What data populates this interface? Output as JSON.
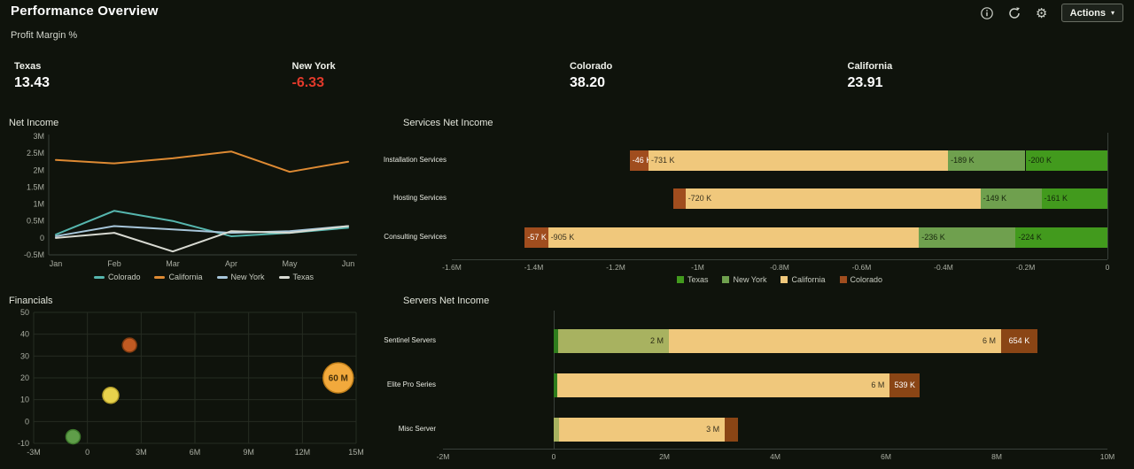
{
  "header": {
    "title": "Performance Overview",
    "actions_label": "Actions",
    "icons": [
      "info-icon",
      "refresh-icon",
      "gear-icon"
    ]
  },
  "kpi": {
    "section_label": "Profit Margin %",
    "tiles": [
      {
        "label": "Texas",
        "value": "13.43",
        "negative": false
      },
      {
        "label": "New York",
        "value": "-6.33",
        "negative": true
      },
      {
        "label": "Colorado",
        "value": "38.20",
        "negative": false
      },
      {
        "label": "California",
        "value": "23.91",
        "negative": false
      }
    ]
  },
  "colors": {
    "negative_value": "#e23a2b",
    "positive_value": "#ffffff",
    "background": "#0f130c",
    "grid": "#262c22",
    "axis": "#39403a"
  },
  "chart_data": [
    {
      "id": "net_income",
      "type": "line",
      "title": "Net Income",
      "x": [
        "Jan",
        "Feb",
        "Mar",
        "Apr",
        "May",
        "Jun"
      ],
      "unit": "M",
      "ylim": [
        -0.5,
        3
      ],
      "yticks": [
        "3M",
        "2.5M",
        "2M",
        "1.5M",
        "1M",
        "0.5M",
        "0",
        "-0.5M"
      ],
      "ytick_values": [
        3,
        2.5,
        2,
        1.5,
        1,
        0.5,
        0,
        -0.5
      ],
      "legend_position": "bottom",
      "grid": false,
      "series": [
        {
          "name": "Colorado",
          "color": "#56b6ae",
          "values": [
            0.1,
            0.8,
            0.5,
            0.05,
            0.15,
            0.3
          ]
        },
        {
          "name": "California",
          "color": "#de8a33",
          "values": [
            2.3,
            2.2,
            2.35,
            2.55,
            1.95,
            2.25
          ]
        },
        {
          "name": "New York",
          "color": "#a7c6da",
          "values": [
            0.05,
            0.35,
            0.25,
            0.15,
            0.2,
            0.35
          ]
        },
        {
          "name": "Texas",
          "color": "#d8dad2",
          "values": [
            0.0,
            0.15,
            -0.4,
            0.2,
            0.15,
            0.35
          ]
        }
      ]
    },
    {
      "id": "services_net_income",
      "type": "bar",
      "subtype": "stacked-horizontal-negative",
      "title": "Services Net Income",
      "unit": "K",
      "xlim_k": [
        -1600,
        0
      ],
      "xticks": [
        {
          "label": "-1.6M",
          "value_k": -1600
        },
        {
          "label": "-1.4M",
          "value_k": -1400
        },
        {
          "label": "-1.2M",
          "value_k": -1200
        },
        {
          "label": "-1M",
          "value_k": -1000
        },
        {
          "label": "-0.8M",
          "value_k": -800
        },
        {
          "label": "-0.6M",
          "value_k": -600
        },
        {
          "label": "-0.4M",
          "value_k": -400
        },
        {
          "label": "-0.2M",
          "value_k": -200
        },
        {
          "label": "0",
          "value_k": 0
        }
      ],
      "legend": [
        {
          "name": "Texas",
          "color": "#429a1d"
        },
        {
          "name": "New York",
          "color": "#6fa04e"
        },
        {
          "name": "California",
          "color": "#f0c87c"
        },
        {
          "name": "Colorado",
          "color": "#a04d1e"
        }
      ],
      "rows": [
        {
          "category": "Installation Services",
          "segments": [
            {
              "series": "Colorado",
              "value_k": -46,
              "label": "-46 K",
              "color": "#a04d1e",
              "text_color": "#ffffff",
              "align": "left"
            },
            {
              "series": "California",
              "value_k": -731,
              "label": "-731 K",
              "color": "#f0c87c",
              "text_color": "#3a3320",
              "align": "left"
            },
            {
              "series": "New York",
              "value_k": -189,
              "label": "-189 K",
              "color": "#6fa04e",
              "text_color": "#17260d",
              "align": "left"
            },
            {
              "series": "Texas",
              "value_k": -200,
              "label": "-200 K",
              "color": "#429a1d",
              "text_color": "#13260a",
              "align": "left"
            }
          ]
        },
        {
          "category": "Hosting Services",
          "segments": [
            {
              "series": "Colorado",
              "value_k": -30,
              "label": "",
              "color": "#a04d1e",
              "text_color": "#ffffff",
              "align": "left"
            },
            {
              "series": "California",
              "value_k": -720,
              "label": "-720 K",
              "color": "#f0c87c",
              "text_color": "#3a3320",
              "align": "left"
            },
            {
              "series": "New York",
              "value_k": -149,
              "label": "-149 K",
              "color": "#6fa04e",
              "text_color": "#17260d",
              "align": "left"
            },
            {
              "series": "Texas",
              "value_k": -161,
              "label": "-161 K",
              "color": "#429a1d",
              "text_color": "#13260a",
              "align": "left"
            }
          ]
        },
        {
          "category": "Consulting Services",
          "segments": [
            {
              "series": "Colorado",
              "value_k": -57,
              "label": "-57 K",
              "color": "#a04d1e",
              "text_color": "#ffffff",
              "align": "left"
            },
            {
              "series": "California",
              "value_k": -905,
              "label": "-905 K",
              "color": "#f0c87c",
              "text_color": "#3a3320",
              "align": "left"
            },
            {
              "series": "New York",
              "value_k": -236,
              "label": "-236 K",
              "color": "#6fa04e",
              "text_color": "#17260d",
              "align": "left"
            },
            {
              "series": "Texas",
              "value_k": -224,
              "label": "-224 K",
              "color": "#429a1d",
              "text_color": "#13260a",
              "align": "left"
            }
          ]
        }
      ]
    },
    {
      "id": "financials",
      "type": "bubble",
      "title": "Financials",
      "xlim_m": [
        -3,
        15
      ],
      "ylim": [
        -10,
        50
      ],
      "grid": true,
      "xticks": [
        {
          "label": "-3M",
          "value": -3
        },
        {
          "label": "0",
          "value": 0
        },
        {
          "label": "3M",
          "value": 3
        },
        {
          "label": "6M",
          "value": 6
        },
        {
          "label": "9M",
          "value": 9
        },
        {
          "label": "12M",
          "value": 12
        },
        {
          "label": "15M",
          "value": 15
        }
      ],
      "yticks": [
        {
          "label": "50",
          "value": 50
        },
        {
          "label": "40",
          "value": 40
        },
        {
          "label": "30",
          "value": 30
        },
        {
          "label": "20",
          "value": 20
        },
        {
          "label": "10",
          "value": 10
        },
        {
          "label": "0",
          "value": 0
        },
        {
          "label": "-10",
          "value": -10
        }
      ],
      "points": [
        {
          "x_m": -0.8,
          "y": -7,
          "r": 8,
          "color": "#5f9e49",
          "border": "#3e7a2c",
          "label": ""
        },
        {
          "x_m": 1.3,
          "y": 12,
          "r": 9,
          "color": "#e8d24c",
          "border": "#b5a02c",
          "label": ""
        },
        {
          "x_m": 2.35,
          "y": 35,
          "r": 8,
          "color": "#c05a22",
          "border": "#7e3a10",
          "label": ""
        },
        {
          "x_m": 14,
          "y": 20,
          "r": 17,
          "color": "#f2a93c",
          "border": "#c07f1a",
          "label": "60 M"
        }
      ]
    },
    {
      "id": "servers_net_income",
      "type": "bar",
      "subtype": "stacked-horizontal-positive",
      "title": "Servers Net Income",
      "unit": "K",
      "xlim_k": [
        -2000,
        10000
      ],
      "xticks": [
        {
          "label": "-2M",
          "value_k": -2000
        },
        {
          "label": "0",
          "value_k": 0
        },
        {
          "label": "2M",
          "value_k": 2000
        },
        {
          "label": "4M",
          "value_k": 4000
        },
        {
          "label": "6M",
          "value_k": 6000
        },
        {
          "label": "8M",
          "value_k": 8000
        },
        {
          "label": "10M",
          "value_k": 10000
        }
      ],
      "rows": [
        {
          "category": "Sentinel Servers",
          "segments": [
            {
              "value_k": 80,
              "label": "",
              "color": "#2f7d1d",
              "text_color": "#ffffff",
              "align": "center"
            },
            {
              "value_k": 2000,
              "label": "2 M",
              "color": "#a8b260",
              "text_color": "#2c2c14",
              "align": "right"
            },
            {
              "value_k": 6000,
              "label": "6 M",
              "color": "#f0c87c",
              "text_color": "#3a3320",
              "align": "right"
            },
            {
              "value_k": 654,
              "label": "654 K",
              "color": "#8a4515",
              "text_color": "#ffffff",
              "align": "center"
            }
          ]
        },
        {
          "category": "Elite Pro Series",
          "segments": [
            {
              "value_k": 70,
              "label": "",
              "color": "#2f7d1d",
              "text_color": "#ffffff",
              "align": "center"
            },
            {
              "value_k": 6000,
              "label": "6 M",
              "color": "#f0c87c",
              "text_color": "#3a3320",
              "align": "right"
            },
            {
              "value_k": 539,
              "label": "539 K",
              "color": "#8a4515",
              "text_color": "#ffffff",
              "align": "center"
            }
          ]
        },
        {
          "category": "Misc Server",
          "segments": [
            {
              "value_k": 90,
              "label": "",
              "color": "#a8b260",
              "text_color": "#2c2c14",
              "align": "center"
            },
            {
              "value_k": 3000,
              "label": "3 M",
              "color": "#f0c87c",
              "text_color": "#3a3320",
              "align": "right"
            },
            {
              "value_k": 230,
              "label": "",
              "color": "#8a4515",
              "text_color": "#ffffff",
              "align": "center"
            }
          ]
        }
      ]
    }
  ]
}
